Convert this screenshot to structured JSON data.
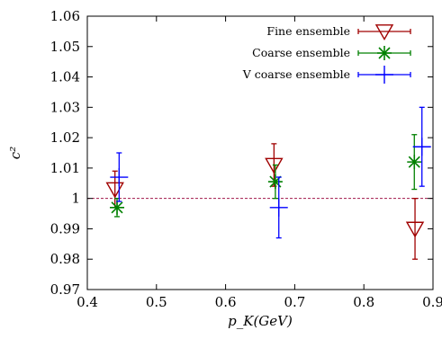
{
  "chart_data": {
    "type": "scatter",
    "xlabel": "p_K(GeV)",
    "ylabel": "c²",
    "xlim": [
      0.4,
      0.9
    ],
    "ylim": [
      0.97,
      1.06
    ],
    "x_ticks": [
      "0.4",
      "0.5",
      "0.6",
      "0.7",
      "0.8",
      "0.9"
    ],
    "y_ticks": [
      "0.97",
      "0.98",
      "0.99",
      "1",
      "1.01",
      "1.02",
      "1.03",
      "1.04",
      "1.05",
      "1.06"
    ],
    "legend_position": "top-right",
    "grid": false,
    "reference_line": {
      "y": 1.0,
      "style": "dashed",
      "color": "#a0164a"
    },
    "series": [
      {
        "name": "Fine ensemble",
        "marker": "triangle-down-open",
        "color": "#a00000",
        "points": [
          {
            "x": 0.44,
            "y": 1.003,
            "yerr": 0.006
          },
          {
            "x": 0.67,
            "y": 1.011,
            "yerr": 0.007
          },
          {
            "x": 0.874,
            "y": 0.99,
            "yerr": 0.01
          }
        ]
      },
      {
        "name": "Coarse ensemble",
        "marker": "star",
        "color": "#008000",
        "points": [
          {
            "x": 0.443,
            "y": 0.997,
            "yerr": 0.003
          },
          {
            "x": 0.672,
            "y": 1.0055,
            "yerr": 0.0055
          },
          {
            "x": 0.873,
            "y": 1.012,
            "yerr": 0.009
          }
        ]
      },
      {
        "name": "V coarse ensemble",
        "marker": "plus",
        "color": "#0000ff",
        "points": [
          {
            "x": 0.446,
            "y": 1.007,
            "yerr": 0.008
          },
          {
            "x": 0.677,
            "y": 0.997,
            "yerr": 0.01
          },
          {
            "x": 0.884,
            "y": 1.017,
            "yerr": 0.013
          }
        ]
      }
    ]
  }
}
